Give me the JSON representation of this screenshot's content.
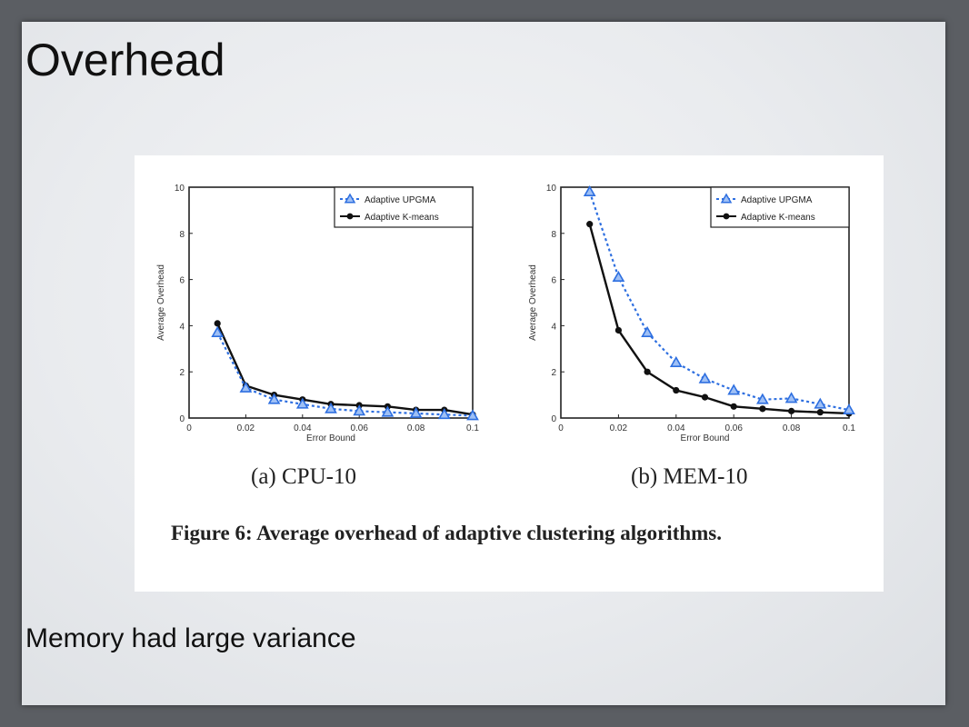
{
  "slide": {
    "title": "Overhead",
    "bullet": "Memory had large variance"
  },
  "figure": {
    "caption": "Figure 6:  Average overhead of adaptive clustering algorithms."
  },
  "colors": {
    "upgma": "#2e6fe0",
    "kmeans": "#111111"
  },
  "chart_data": [
    {
      "type": "line",
      "title": "(a) CPU-10",
      "xlabel": "Error Bound",
      "ylabel": "Average Overhead",
      "xlim": [
        0,
        0.1
      ],
      "ylim": [
        0,
        10
      ],
      "xticks": [
        0,
        0.02,
        0.04,
        0.06,
        0.08,
        0.1
      ],
      "xtick_labels": [
        "0",
        "0.02",
        "0.04",
        "0.06",
        "0.08",
        "0.1"
      ],
      "yticks": [
        0,
        2,
        4,
        6,
        8,
        10
      ],
      "ytick_labels": [
        "0",
        "2",
        "4",
        "6",
        "8",
        "10"
      ],
      "legend_position": "top-right",
      "x": [
        0.01,
        0.02,
        0.03,
        0.04,
        0.05,
        0.06,
        0.07,
        0.08,
        0.09,
        0.1
      ],
      "series": [
        {
          "name": "Adaptive UPGMA",
          "marker": "triangle",
          "style": "dotted",
          "values": [
            3.7,
            1.3,
            0.8,
            0.6,
            0.4,
            0.3,
            0.25,
            0.2,
            0.15,
            0.1
          ]
        },
        {
          "name": "Adaptive K-means",
          "marker": "circle",
          "style": "solid",
          "values": [
            4.1,
            1.4,
            1.0,
            0.8,
            0.6,
            0.55,
            0.5,
            0.35,
            0.35,
            0.15
          ]
        }
      ]
    },
    {
      "type": "line",
      "title": "(b) MEM-10",
      "xlabel": "Error Bound",
      "ylabel": "Average Overhead",
      "xlim": [
        0,
        0.1
      ],
      "ylim": [
        0,
        10
      ],
      "xticks": [
        0,
        0.02,
        0.04,
        0.06,
        0.08,
        0.1
      ],
      "xtick_labels": [
        "0",
        "0.02",
        "0.04",
        "0.06",
        "0.08",
        "0.1"
      ],
      "yticks": [
        0,
        2,
        4,
        6,
        8,
        10
      ],
      "ytick_labels": [
        "0",
        "2",
        "4",
        "6",
        "8",
        "10"
      ],
      "legend_position": "top-right",
      "x": [
        0.01,
        0.02,
        0.03,
        0.04,
        0.05,
        0.06,
        0.07,
        0.08,
        0.09,
        0.1
      ],
      "series": [
        {
          "name": "Adaptive UPGMA",
          "marker": "triangle",
          "style": "dotted",
          "values": [
            9.8,
            6.1,
            3.7,
            2.4,
            1.7,
            1.2,
            0.8,
            0.85,
            0.6,
            0.35
          ]
        },
        {
          "name": "Adaptive K-means",
          "marker": "circle",
          "style": "solid",
          "values": [
            8.4,
            3.8,
            2.0,
            1.2,
            0.9,
            0.5,
            0.4,
            0.3,
            0.25,
            0.2
          ]
        }
      ]
    }
  ]
}
